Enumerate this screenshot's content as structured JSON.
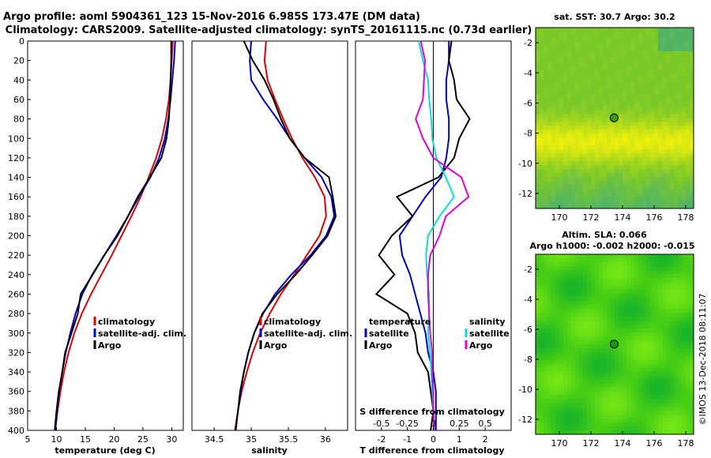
{
  "header": {
    "title_line1": "Argo profile: aoml 5904361_123 15-Nov-2016 6.985S 173.47E (DM data)",
    "title_line2": "Climatology: CARS2009. Satellite-adjusted climatology: synTS_20161115.nc (0.73d earlier)"
  },
  "watermark": "©IMOS 13-Dec-2018 08:11:07",
  "colors": {
    "climatology": "#e00000",
    "satellite": "#0000d0",
    "argo": "#000000",
    "sal_satellite": "#00e0e0",
    "sal_argo": "#e000e0",
    "zero_line": "#000000"
  },
  "depth_axis": {
    "ticks": [
      0,
      20,
      40,
      60,
      80,
      100,
      120,
      140,
      160,
      180,
      200,
      220,
      240,
      260,
      280,
      300,
      320,
      340,
      360,
      380,
      400
    ],
    "range": [
      0,
      400
    ]
  },
  "chart_data": [
    {
      "id": "temperature",
      "type": "line",
      "xlabel": "temperature (deg C)",
      "xlim": [
        5,
        32
      ],
      "xticks": [
        5,
        10,
        15,
        20,
        25,
        30
      ],
      "ylim": [
        0,
        400
      ],
      "legend": [
        "climatology",
        "satellite-adj. clim.",
        "Argo"
      ],
      "series": [
        {
          "name": "climatology",
          "color_key": "climatology",
          "depth": [
            0,
            20,
            40,
            60,
            80,
            100,
            120,
            140,
            160,
            180,
            200,
            220,
            240,
            260,
            280,
            300,
            320,
            340,
            360,
            380,
            400
          ],
          "values": [
            30.2,
            30.0,
            29.8,
            29.5,
            29.0,
            28.3,
            27.3,
            26.0,
            24.6,
            23.0,
            21.3,
            19.6,
            17.8,
            16.0,
            14.4,
            13.1,
            12.1,
            11.3,
            10.7,
            10.2,
            9.8
          ]
        },
        {
          "name": "satellite-adj. clim.",
          "color_key": "satellite",
          "depth": [
            0,
            20,
            40,
            60,
            80,
            100,
            120,
            140,
            160,
            180,
            200,
            220,
            240,
            260,
            280,
            300,
            320,
            340,
            360,
            380,
            400
          ],
          "values": [
            30.6,
            30.4,
            30.1,
            29.8,
            29.4,
            28.8,
            27.8,
            26.3,
            24.3,
            22.4,
            20.4,
            18.3,
            16.2,
            14.5,
            13.3,
            12.4,
            11.6,
            11.0,
            10.5,
            10.1,
            9.8
          ]
        },
        {
          "name": "Argo",
          "color_key": "argo",
          "depth": [
            0,
            20,
            40,
            60,
            80,
            100,
            120,
            140,
            160,
            180,
            200,
            220,
            240,
            260,
            280,
            300,
            320,
            340,
            360,
            380,
            400
          ],
          "values": [
            29.9,
            29.9,
            29.8,
            29.7,
            29.5,
            29.1,
            28.2,
            26.2,
            24.1,
            22.4,
            20.6,
            18.3,
            16.3,
            14.2,
            13.7,
            12.6,
            11.5,
            11.0,
            10.4,
            10.0,
            9.7
          ]
        }
      ]
    },
    {
      "id": "salinity",
      "type": "line",
      "xlabel": "salinity",
      "xlim": [
        34.2,
        36.3
      ],
      "xticks": [
        34.5,
        35,
        35.5,
        36
      ],
      "xticklabels": [
        "34.5",
        "35",
        "35.5",
        "36"
      ],
      "ylim": [
        0,
        400
      ],
      "legend": [
        "climatology",
        "satellite-adj. clim.",
        "Argo"
      ],
      "series": [
        {
          "name": "climatology",
          "color_key": "climatology",
          "depth": [
            0,
            20,
            40,
            60,
            80,
            100,
            120,
            140,
            160,
            180,
            200,
            220,
            240,
            260,
            280,
            300,
            320,
            340,
            360,
            380,
            400
          ],
          "values": [
            35.2,
            35.18,
            35.22,
            35.32,
            35.43,
            35.55,
            35.69,
            35.86,
            35.99,
            36.01,
            35.92,
            35.75,
            35.58,
            35.4,
            35.25,
            35.12,
            35.02,
            34.94,
            34.87,
            34.82,
            34.78
          ]
        },
        {
          "name": "satellite-adj. clim.",
          "color_key": "satellite",
          "depth": [
            0,
            20,
            40,
            60,
            80,
            100,
            120,
            140,
            160,
            180,
            200,
            220,
            240,
            260,
            280,
            300,
            320,
            340,
            360,
            380,
            400
          ],
          "values": [
            35.0,
            34.98,
            35.0,
            35.16,
            35.35,
            35.52,
            35.72,
            35.95,
            36.08,
            36.12,
            36.01,
            35.8,
            35.54,
            35.32,
            35.16,
            35.04,
            34.96,
            34.9,
            34.86,
            34.82,
            34.79
          ]
        },
        {
          "name": "Argo",
          "color_key": "argo",
          "depth": [
            0,
            20,
            40,
            60,
            80,
            100,
            120,
            140,
            160,
            180,
            200,
            220,
            240,
            260,
            280,
            300,
            320,
            340,
            360,
            380,
            400
          ],
          "values": [
            34.9,
            35.02,
            35.18,
            35.3,
            35.4,
            35.52,
            35.72,
            36.05,
            36.1,
            36.14,
            36.03,
            35.82,
            35.6,
            35.35,
            35.15,
            35.04,
            34.96,
            34.9,
            34.85,
            34.82,
            34.79
          ]
        }
      ]
    },
    {
      "id": "difference",
      "type": "line",
      "xlabel": "T difference from climatology",
      "xlabel_top": "S difference from climatology",
      "xlim": [
        -3,
        3
      ],
      "xticks": [
        -2,
        -1,
        0,
        1,
        2
      ],
      "xticklabels": [
        "-2",
        "-1",
        "0",
        "1",
        "2"
      ],
      "s_xticks": [
        -0.5,
        -0.25,
        0,
        0.25,
        0.5
      ],
      "s_xticklabels": [
        "-0.5",
        "-0.25",
        "0",
        "0.25",
        "0.5"
      ],
      "s_scale": 4,
      "ylim": [
        0,
        400
      ],
      "legend_temperature": {
        "heading": "temperature",
        "items": [
          "satellite",
          "Argo"
        ]
      },
      "legend_salinity": {
        "heading": "salinity",
        "items": [
          "satellite",
          "Argo"
        ]
      },
      "series": [
        {
          "name": "T satellite",
          "color_key": "satellite",
          "depth": [
            0,
            20,
            40,
            60,
            80,
            100,
            120,
            140,
            160,
            180,
            200,
            220,
            240,
            260,
            280,
            300,
            320,
            340,
            360,
            380,
            400
          ],
          "values": [
            0.6,
            0.6,
            0.5,
            0.5,
            0.6,
            0.6,
            0.5,
            0.3,
            -0.3,
            -0.8,
            -1.3,
            -1.2,
            -0.9,
            -0.7,
            -0.5,
            -0.3,
            -0.2,
            0.0,
            0.1,
            0.1,
            0.1
          ]
        },
        {
          "name": "T Argo",
          "color_key": "argo",
          "depth": [
            0,
            20,
            40,
            60,
            80,
            100,
            120,
            140,
            160,
            180,
            200,
            220,
            240,
            260,
            280,
            300,
            320,
            340,
            360,
            380,
            400
          ],
          "values": [
            0.7,
            0.6,
            0.8,
            0.9,
            1.4,
            1.0,
            0.8,
            0.2,
            -1.4,
            -0.8,
            -1.6,
            -2.1,
            -1.5,
            -2.2,
            -1.0,
            -0.7,
            -0.6,
            -0.2,
            -0.1,
            0.0,
            -0.1
          ]
        },
        {
          "name": "S satellite",
          "color_key": "sal_satellite",
          "depth": [
            0,
            20,
            40,
            60,
            80,
            100,
            120,
            140,
            160,
            180,
            200,
            220,
            240,
            260,
            280,
            300,
            320,
            340,
            360,
            380,
            400
          ],
          "values": [
            -0.14,
            -0.1,
            -0.05,
            -0.04,
            -0.02,
            -0.01,
            0.03,
            0.12,
            0.2,
            0.06,
            -0.05,
            -0.07,
            -0.06,
            -0.04,
            -0.04,
            -0.05,
            -0.03,
            -0.02,
            -0.01,
            0.0,
            0.01
          ]
        },
        {
          "name": "S Argo",
          "color_key": "sal_argo",
          "depth": [
            0,
            20,
            40,
            60,
            80,
            100,
            120,
            140,
            160,
            180,
            200,
            220,
            240,
            260,
            280,
            300,
            320,
            340,
            360,
            380,
            400
          ],
          "values": [
            -0.12,
            -0.08,
            -0.09,
            -0.1,
            -0.17,
            -0.1,
            0.0,
            0.27,
            0.34,
            0.12,
            0.06,
            -0.03,
            -0.05,
            -0.05,
            -0.04,
            -0.03,
            -0.01,
            -0.01,
            0.0,
            0.0,
            0.01
          ]
        }
      ]
    },
    {
      "id": "sst_map",
      "type": "heatmap",
      "title": "sat. SST: 30.7 Argo: 30.2",
      "xlim": [
        168.5,
        178.5
      ],
      "ylim": [
        -13,
        -1
      ],
      "xticks": [
        170,
        172,
        174,
        176,
        178
      ],
      "yticks": [
        -2,
        -4,
        -6,
        -8,
        -10,
        -12
      ],
      "profile_location": {
        "lon": 173.47,
        "lat": -6.985
      }
    },
    {
      "id": "sla_map",
      "type": "heatmap",
      "title": "Altim. SLA: 0.066",
      "subtitle": "Argo h1000: -0.002 h2000: -0.015",
      "xlim": [
        168.5,
        178.5
      ],
      "ylim": [
        -13,
        -1
      ],
      "xticks": [
        170,
        172,
        174,
        176,
        178
      ],
      "yticks": [
        -2,
        -4,
        -6,
        -8,
        -10,
        -12
      ],
      "profile_location": {
        "lon": 173.47,
        "lat": -6.985
      }
    }
  ]
}
